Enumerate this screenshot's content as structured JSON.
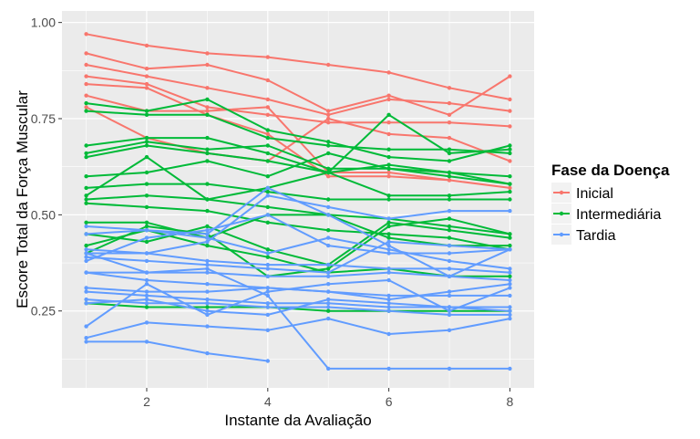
{
  "chart_data": {
    "type": "line",
    "xlabel": "Instante da Avaliação",
    "ylabel": "Escore Total da Força Muscular",
    "xlim": [
      0.6,
      8.4
    ],
    "ylim": [
      0.05,
      1.03
    ],
    "x_ticks": [
      2,
      4,
      6,
      8
    ],
    "y_ticks": [
      0.25,
      0.5,
      0.75,
      1.0
    ],
    "x_tick_labels": [
      "2",
      "4",
      "6",
      "8"
    ],
    "y_tick_labels": [
      "0.25",
      "0.50",
      "0.75",
      "1.00"
    ],
    "grid": true,
    "legend": {
      "title": "Fase da Doença",
      "position": "right",
      "entries": [
        "Inicial",
        "Intermediária",
        "Tardia"
      ]
    },
    "colors": {
      "Inicial": "#F8766D",
      "Intermediária": "#00BA38",
      "Tardia": "#619CFF",
      "panel": "#EBEBEB",
      "grid": "#FFFFFF"
    },
    "series": [
      {
        "group": "Inicial",
        "x": [
          1,
          2,
          3,
          4,
          5,
          6,
          7,
          8
        ],
        "y": [
          0.97,
          0.94,
          0.92,
          0.91,
          0.89,
          0.87,
          0.83,
          0.8
        ]
      },
      {
        "group": "Inicial",
        "x": [
          1,
          2,
          3,
          4,
          5,
          6,
          7,
          8
        ],
        "y": [
          0.92,
          0.88,
          0.89,
          0.85,
          0.77,
          0.81,
          0.76,
          0.86
        ]
      },
      {
        "group": "Inicial",
        "x": [
          1,
          2,
          3,
          4,
          5,
          6,
          7,
          8
        ],
        "y": [
          0.89,
          0.86,
          0.83,
          0.8,
          0.76,
          0.8,
          0.79,
          0.77
        ]
      },
      {
        "group": "Inicial",
        "x": [
          1,
          2,
          3,
          4,
          5,
          6,
          7,
          8
        ],
        "y": [
          0.86,
          0.84,
          0.78,
          0.76,
          0.74,
          0.74,
          0.74,
          0.73
        ]
      },
      {
        "group": "Inicial",
        "x": [
          1,
          2,
          3,
          4,
          5,
          6,
          7,
          8
        ],
        "y": [
          0.81,
          0.77,
          0.77,
          0.78,
          0.61,
          0.61,
          0.59,
          0.57
        ]
      },
      {
        "group": "Inicial",
        "x": [
          1,
          2,
          3,
          4,
          5,
          6,
          7,
          8
        ],
        "y": [
          0.78,
          0.7,
          0.66,
          0.64,
          0.75,
          0.71,
          0.7,
          0.64
        ]
      },
      {
        "group": "Inicial",
        "x": [
          1,
          2,
          3,
          4,
          5,
          6,
          7
        ],
        "y": [
          0.84,
          0.83,
          0.76,
          0.71,
          0.6,
          0.6,
          0.59
        ]
      },
      {
        "group": "Intermediária",
        "x": [
          1,
          2,
          3,
          4,
          5,
          6,
          7,
          8
        ],
        "y": [
          0.79,
          0.77,
          0.8,
          0.72,
          0.69,
          0.65,
          0.64,
          0.68
        ]
      },
      {
        "group": "Intermediária",
        "x": [
          1,
          2,
          3,
          4,
          5,
          6,
          7,
          8
        ],
        "y": [
          0.77,
          0.76,
          0.76,
          0.7,
          0.68,
          0.67,
          0.67,
          0.66
        ]
      },
      {
        "group": "Intermediária",
        "x": [
          1,
          2,
          3,
          4,
          5,
          6,
          7,
          8
        ],
        "y": [
          0.68,
          0.7,
          0.7,
          0.66,
          0.61,
          0.76,
          0.66,
          0.67
        ]
      },
      {
        "group": "Intermediária",
        "x": [
          1,
          2,
          3,
          4,
          5,
          6,
          7,
          8
        ],
        "y": [
          0.66,
          0.69,
          0.67,
          0.68,
          0.62,
          0.62,
          0.61,
          0.58
        ]
      },
      {
        "group": "Intermediária",
        "x": [
          1,
          2,
          3,
          4,
          5,
          6,
          7,
          8
        ],
        "y": [
          0.65,
          0.68,
          0.66,
          0.64,
          0.61,
          0.63,
          0.61,
          0.6
        ]
      },
      {
        "group": "Intermediária",
        "x": [
          1,
          2,
          3,
          4,
          5,
          6,
          7,
          8
        ],
        "y": [
          0.6,
          0.61,
          0.64,
          0.6,
          0.66,
          0.62,
          0.6,
          0.58
        ]
      },
      {
        "group": "Intermediária",
        "x": [
          1,
          2,
          3,
          4,
          5,
          6,
          7,
          8
        ],
        "y": [
          0.57,
          0.58,
          0.58,
          0.56,
          0.54,
          0.54,
          0.54,
          0.54
        ]
      },
      {
        "group": "Intermediária",
        "x": [
          1,
          2,
          3,
          4,
          5,
          6,
          7,
          8
        ],
        "y": [
          0.55,
          0.65,
          0.54,
          0.57,
          0.61,
          0.55,
          0.55,
          0.56
        ]
      },
      {
        "group": "Intermediária",
        "x": [
          1,
          2,
          3,
          4,
          5,
          6,
          7,
          8
        ],
        "y": [
          0.54,
          0.55,
          0.54,
          0.52,
          0.5,
          0.49,
          0.47,
          0.45
        ]
      },
      {
        "group": "Intermediária",
        "x": [
          1,
          2,
          3,
          4,
          5,
          6,
          7,
          8
        ],
        "y": [
          0.53,
          0.52,
          0.51,
          0.48,
          0.46,
          0.45,
          0.44,
          0.41
        ]
      },
      {
        "group": "Intermediária",
        "x": [
          1,
          2,
          3,
          4,
          5,
          6,
          7,
          8
        ],
        "y": [
          0.48,
          0.48,
          0.44,
          0.5,
          0.5,
          0.44,
          0.42,
          0.42
        ]
      },
      {
        "group": "Intermediária",
        "x": [
          1,
          2,
          3,
          4,
          5,
          6,
          7,
          8
        ],
        "y": [
          0.45,
          0.43,
          0.47,
          0.41,
          0.37,
          0.48,
          0.46,
          0.44
        ]
      },
      {
        "group": "Intermediária",
        "x": [
          1,
          2,
          3,
          4,
          5,
          6,
          7,
          8
        ],
        "y": [
          0.42,
          0.46,
          0.42,
          0.39,
          0.35,
          0.36,
          0.34,
          0.34
        ]
      },
      {
        "group": "Intermediária",
        "x": [
          1,
          2,
          3,
          4,
          5,
          6,
          7,
          8
        ],
        "y": [
          0.4,
          0.47,
          0.45,
          0.34,
          0.36,
          0.47,
          0.49,
          0.45
        ]
      },
      {
        "group": "Intermediária",
        "x": [
          1,
          2,
          3,
          4,
          5,
          6,
          7,
          8
        ],
        "y": [
          0.27,
          0.26,
          0.26,
          0.26,
          0.25,
          0.25,
          0.25,
          0.25
        ]
      },
      {
        "group": "Tardia",
        "x": [
          1,
          2,
          3,
          4,
          5,
          6,
          7,
          8
        ],
        "y": [
          0.41,
          0.4,
          0.38,
          0.37,
          0.37,
          0.36,
          0.36,
          0.35
        ]
      },
      {
        "group": "Tardia",
        "x": [
          1,
          2,
          3,
          4,
          5,
          6,
          7,
          8
        ],
        "y": [
          0.39,
          0.38,
          0.37,
          0.36,
          0.35,
          0.43,
          0.42,
          0.41
        ]
      },
      {
        "group": "Tardia",
        "x": [
          1,
          2,
          3,
          4,
          5,
          6,
          7,
          8
        ],
        "y": [
          0.38,
          0.44,
          0.46,
          0.5,
          0.42,
          0.4,
          0.4,
          0.41
        ]
      },
      {
        "group": "Tardia",
        "x": [
          1,
          2,
          3,
          4,
          5,
          6,
          7,
          8
        ],
        "y": [
          0.35,
          0.35,
          0.35,
          0.34,
          0.34,
          0.35,
          0.34,
          0.33
        ]
      },
      {
        "group": "Tardia",
        "x": [
          1,
          2,
          3,
          4,
          5,
          6,
          7,
          8
        ],
        "y": [
          0.35,
          0.33,
          0.32,
          0.31,
          0.3,
          0.29,
          0.29,
          0.29
        ]
      },
      {
        "group": "Tardia",
        "x": [
          1,
          2,
          3,
          4,
          5,
          6,
          7,
          8
        ],
        "y": [
          0.31,
          0.3,
          0.3,
          0.31,
          0.3,
          0.28,
          0.3,
          0.32
        ]
      },
      {
        "group": "Tardia",
        "x": [
          1,
          2,
          3,
          4,
          5,
          6,
          7,
          8
        ],
        "y": [
          0.3,
          0.29,
          0.28,
          0.27,
          0.27,
          0.26,
          0.26,
          0.25
        ]
      },
      {
        "group": "Tardia",
        "x": [
          1,
          2,
          3,
          4,
          5,
          6,
          7,
          8
        ],
        "y": [
          0.28,
          0.27,
          0.27,
          0.26,
          0.26,
          0.25,
          0.24,
          0.24
        ]
      },
      {
        "group": "Tardia",
        "x": [
          1,
          2,
          3,
          4,
          5,
          6,
          7,
          8
        ],
        "y": [
          0.27,
          0.28,
          0.25,
          0.24,
          0.28,
          0.27,
          0.26,
          0.26
        ]
      },
      {
        "group": "Tardia",
        "x": [
          1,
          2,
          3,
          4,
          5,
          6,
          7,
          8
        ],
        "y": [
          0.21,
          0.32,
          0.24,
          0.3,
          0.32,
          0.33,
          0.25,
          0.31
        ]
      },
      {
        "group": "Tardia",
        "x": [
          1,
          2,
          3,
          4,
          5,
          6,
          7,
          8
        ],
        "y": [
          0.18,
          0.22,
          0.21,
          0.2,
          0.23,
          0.19,
          0.2,
          0.23
        ]
      },
      {
        "group": "Tardia",
        "x": [
          1,
          2,
          3,
          4
        ],
        "y": [
          0.17,
          0.17,
          0.14,
          0.12
        ]
      },
      {
        "group": "Tardia",
        "x": [
          1,
          2,
          3,
          4,
          5,
          6,
          7,
          8
        ],
        "y": [
          0.4,
          0.35,
          0.36,
          0.29,
          0.1,
          0.1,
          0.1,
          0.1
        ]
      },
      {
        "group": "Tardia",
        "x": [
          1,
          2,
          3,
          4,
          5,
          6,
          7,
          8
        ],
        "y": [
          0.4,
          0.4,
          0.43,
          0.55,
          0.52,
          0.49,
          0.51,
          0.51
        ]
      },
      {
        "group": "Tardia",
        "x": [
          1,
          2,
          3,
          4,
          5,
          6,
          7,
          8
        ],
        "y": [
          0.45,
          0.46,
          0.45,
          0.57,
          0.5,
          0.42,
          0.34,
          0.41
        ]
      },
      {
        "group": "Tardia",
        "x": [
          1,
          2,
          3,
          4,
          5,
          6,
          7,
          8
        ],
        "y": [
          0.47,
          0.46,
          0.44,
          0.4,
          0.44,
          0.41,
          0.38,
          0.36
        ]
      }
    ]
  }
}
